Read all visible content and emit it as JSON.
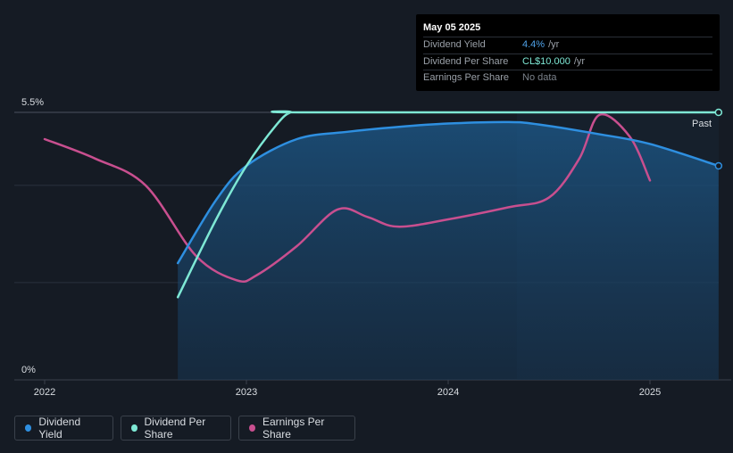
{
  "chart_data": {
    "type": "line",
    "title": "",
    "y_tick_labels": [
      "5.5%",
      "0%"
    ],
    "x_tick_labels": [
      "2022",
      "2023",
      "2024",
      "2025"
    ],
    "past_label": "Past",
    "series": [
      {
        "name": "Dividend Yield",
        "color": "#2e8fe0",
        "points": [
          [
            2022.66,
            2.4
          ],
          [
            2022.85,
            3.7
          ],
          [
            2023.0,
            4.4
          ],
          [
            2023.25,
            4.95
          ],
          [
            2023.5,
            5.1
          ],
          [
            2023.75,
            5.2
          ],
          [
            2024.0,
            5.27
          ],
          [
            2024.3,
            5.3
          ],
          [
            2024.45,
            5.25
          ],
          [
            2024.75,
            5.05
          ],
          [
            2025.0,
            4.85
          ],
          [
            2025.34,
            4.4
          ]
        ]
      },
      {
        "name": "Dividend Per Share",
        "color": "#7ee8d5",
        "points": [
          [
            2022.66,
            1.7
          ],
          [
            2022.85,
            3.3
          ],
          [
            2023.0,
            4.4
          ],
          [
            2023.15,
            5.25
          ],
          [
            2023.22,
            5.5
          ],
          [
            2023.3,
            5.5
          ],
          [
            2025.34,
            5.5
          ]
        ]
      },
      {
        "name": "Earnings Per Share",
        "color": "#c84f8f",
        "points": [
          [
            2022.0,
            4.95
          ],
          [
            2022.25,
            4.55
          ],
          [
            2022.5,
            4.0
          ],
          [
            2022.75,
            2.55
          ],
          [
            2022.95,
            2.05
          ],
          [
            2023.05,
            2.15
          ],
          [
            2023.25,
            2.75
          ],
          [
            2023.45,
            3.5
          ],
          [
            2023.6,
            3.35
          ],
          [
            2023.75,
            3.15
          ],
          [
            2024.0,
            3.3
          ],
          [
            2024.3,
            3.55
          ],
          [
            2024.5,
            3.75
          ],
          [
            2024.65,
            4.55
          ],
          [
            2024.75,
            5.45
          ],
          [
            2024.9,
            5.0
          ],
          [
            2025.0,
            4.1
          ]
        ]
      }
    ],
    "x_range": [
      2021.85,
      2025.35
    ],
    "y_range": [
      0,
      5.5
    ],
    "endpoint_markers": [
      "Dividend Yield",
      "Dividend Per Share"
    ]
  },
  "tooltip": {
    "date": "May 05 2025",
    "rows": [
      {
        "label": "Dividend Yield",
        "value": "4.4%",
        "unit": "/yr"
      },
      {
        "label": "Dividend Per Share",
        "value": "CL$10.000",
        "unit": "/yr"
      },
      {
        "label": "Earnings Per Share",
        "value": "No data",
        "unit": ""
      }
    ]
  },
  "legend": [
    {
      "label": "Dividend Yield",
      "color": "#2e8fe0"
    },
    {
      "label": "Dividend Per Share",
      "color": "#7ee8d5"
    },
    {
      "label": "Earnings Per Share",
      "color": "#c84f8f"
    }
  ]
}
